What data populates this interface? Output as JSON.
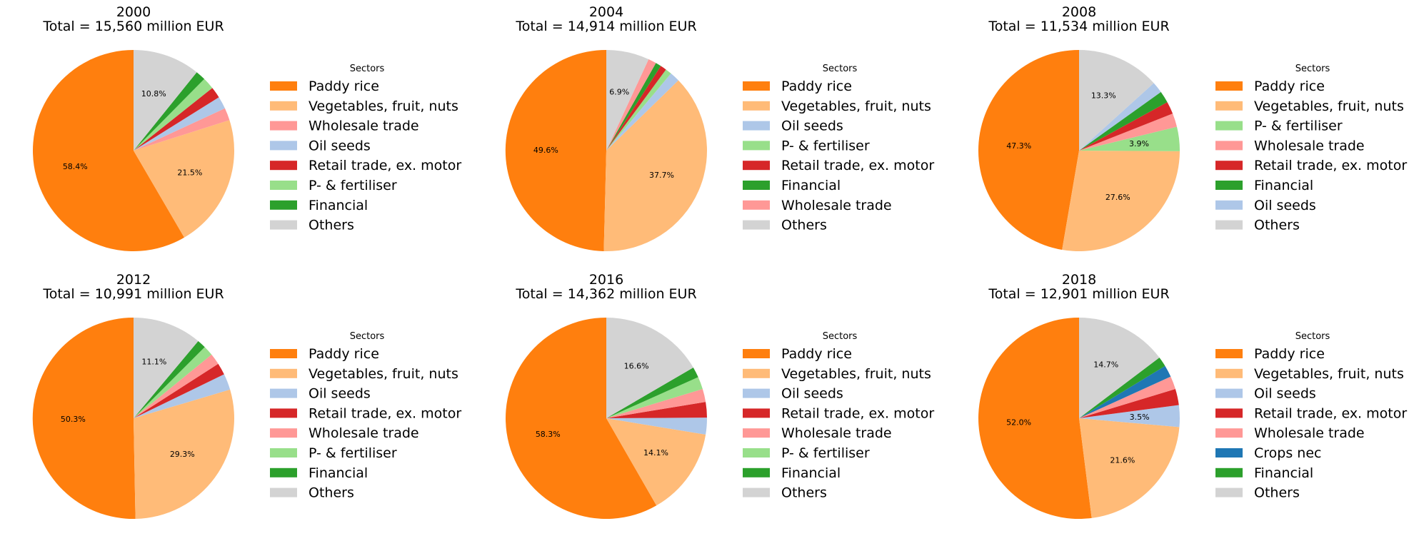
{
  "chart_data": [
    {
      "type": "pie",
      "title": "2000",
      "subtitle": "Total = 15,560 million EUR",
      "legend_title": "Sectors",
      "legend_placement": "right",
      "slices": [
        {
          "label": "Paddy rice",
          "value": 58.4,
          "color": "#ff7f0e",
          "pct_label": "58.4%"
        },
        {
          "label": "Vegetables, fruit, nuts",
          "value": 21.5,
          "color": "#ffbb78",
          "pct_label": "21.5%"
        },
        {
          "label": "Wholesale trade",
          "value": 2.0,
          "color": "#ff9896",
          "pct_label": ""
        },
        {
          "label": "Oil seeds",
          "value": 2.0,
          "color": "#aec7e8",
          "pct_label": ""
        },
        {
          "label": "Retail trade, ex. motor",
          "value": 1.8,
          "color": "#d62728",
          "pct_label": ""
        },
        {
          "label": "P- & fertiliser",
          "value": 1.9,
          "color": "#98df8a",
          "pct_label": ""
        },
        {
          "label": "Financial",
          "value": 1.6,
          "color": "#2ca02c",
          "pct_label": ""
        },
        {
          "label": "Others",
          "value": 10.8,
          "color": "#d3d3d3",
          "pct_label": "10.8%"
        }
      ]
    },
    {
      "type": "pie",
      "title": "2004",
      "subtitle": "Total = 14,914 million EUR",
      "legend_title": "Sectors",
      "legend_placement": "right",
      "slices": [
        {
          "label": "Paddy rice",
          "value": 49.6,
          "color": "#ff7f0e",
          "pct_label": "49.6%"
        },
        {
          "label": "Vegetables, fruit, nuts",
          "value": 37.7,
          "color": "#ffbb78",
          "pct_label": "37.7%"
        },
        {
          "label": "Oil seeds",
          "value": 1.6,
          "color": "#aec7e8",
          "pct_label": ""
        },
        {
          "label": "P- & fertiliser",
          "value": 1.0,
          "color": "#98df8a",
          "pct_label": ""
        },
        {
          "label": "Retail trade, ex. motor",
          "value": 1.0,
          "color": "#d62728",
          "pct_label": ""
        },
        {
          "label": "Financial",
          "value": 0.9,
          "color": "#2ca02c",
          "pct_label": ""
        },
        {
          "label": "Wholesale trade",
          "value": 1.3,
          "color": "#ff9896",
          "pct_label": ""
        },
        {
          "label": "Others",
          "value": 6.9,
          "color": "#d3d3d3",
          "pct_label": "6.9%"
        }
      ]
    },
    {
      "type": "pie",
      "title": "2008",
      "subtitle": "Total = 11,534 million EUR",
      "legend_title": "Sectors",
      "legend_placement": "right",
      "slices": [
        {
          "label": "Paddy rice",
          "value": 47.3,
          "color": "#ff7f0e",
          "pct_label": "47.3%"
        },
        {
          "label": "Vegetables, fruit, nuts",
          "value": 27.6,
          "color": "#ffbb78",
          "pct_label": "27.6%"
        },
        {
          "label": "P- & fertiliser",
          "value": 3.9,
          "color": "#98df8a",
          "pct_label": "3.9%"
        },
        {
          "label": "Wholesale trade",
          "value": 2.2,
          "color": "#ff9896",
          "pct_label": ""
        },
        {
          "label": "Retail trade, ex. motor",
          "value": 2.0,
          "color": "#d62728",
          "pct_label": ""
        },
        {
          "label": "Financial",
          "value": 1.9,
          "color": "#2ca02c",
          "pct_label": ""
        },
        {
          "label": "Oil seeds",
          "value": 1.8,
          "color": "#aec7e8",
          "pct_label": ""
        },
        {
          "label": "Others",
          "value": 13.3,
          "color": "#d3d3d3",
          "pct_label": "13.3%"
        }
      ]
    },
    {
      "type": "pie",
      "title": "2012",
      "subtitle": "Total = 10,991 million EUR",
      "legend_title": "Sectors",
      "legend_placement": "right",
      "slices": [
        {
          "label": "Paddy rice",
          "value": 50.3,
          "color": "#ff7f0e",
          "pct_label": "50.3%"
        },
        {
          "label": "Vegetables, fruit, nuts",
          "value": 29.3,
          "color": "#ffbb78",
          "pct_label": "29.3%"
        },
        {
          "label": "Oil seeds",
          "value": 2.6,
          "color": "#aec7e8",
          "pct_label": ""
        },
        {
          "label": "Retail trade, ex. motor",
          "value": 1.9,
          "color": "#d62728",
          "pct_label": ""
        },
        {
          "label": "Wholesale trade",
          "value": 1.8,
          "color": "#ff9896",
          "pct_label": ""
        },
        {
          "label": "P- & fertiliser",
          "value": 1.6,
          "color": "#98df8a",
          "pct_label": ""
        },
        {
          "label": "Financial",
          "value": 1.4,
          "color": "#2ca02c",
          "pct_label": ""
        },
        {
          "label": "Others",
          "value": 11.1,
          "color": "#d3d3d3",
          "pct_label": "11.1%"
        }
      ]
    },
    {
      "type": "pie",
      "title": "2016",
      "subtitle": "Total = 14,362 million EUR",
      "legend_title": "Sectors",
      "legend_placement": "right",
      "slices": [
        {
          "label": "Paddy rice",
          "value": 58.3,
          "color": "#ff7f0e",
          "pct_label": "58.3%"
        },
        {
          "label": "Vegetables, fruit, nuts",
          "value": 14.1,
          "color": "#ffbb78",
          "pct_label": "14.1%"
        },
        {
          "label": "Oil seeds",
          "value": 2.7,
          "color": "#aec7e8",
          "pct_label": ""
        },
        {
          "label": "Retail trade, ex. motor",
          "value": 2.5,
          "color": "#d62728",
          "pct_label": ""
        },
        {
          "label": "Wholesale trade",
          "value": 2.1,
          "color": "#ff9896",
          "pct_label": ""
        },
        {
          "label": "P- & fertiliser",
          "value": 2.0,
          "color": "#98df8a",
          "pct_label": ""
        },
        {
          "label": "Financial",
          "value": 1.7,
          "color": "#2ca02c",
          "pct_label": ""
        },
        {
          "label": "Others",
          "value": 16.6,
          "color": "#d3d3d3",
          "pct_label": "16.6%"
        }
      ]
    },
    {
      "type": "pie",
      "title": "2018",
      "subtitle": "Total = 12,901 million EUR",
      "legend_title": "Sectors",
      "legend_placement": "right",
      "slices": [
        {
          "label": "Paddy rice",
          "value": 52.0,
          "color": "#ff7f0e",
          "pct_label": "52.0%"
        },
        {
          "label": "Vegetables, fruit, nuts",
          "value": 21.6,
          "color": "#ffbb78",
          "pct_label": "21.6%"
        },
        {
          "label": "Oil seeds",
          "value": 3.5,
          "color": "#aec7e8",
          "pct_label": "3.5%"
        },
        {
          "label": "Retail trade, ex. motor",
          "value": 2.6,
          "color": "#d62728",
          "pct_label": ""
        },
        {
          "label": "Wholesale trade",
          "value": 2.1,
          "color": "#ff9896",
          "pct_label": ""
        },
        {
          "label": "Crops nec",
          "value": 1.9,
          "color": "#1f77b4",
          "pct_label": ""
        },
        {
          "label": "Financial",
          "value": 1.6,
          "color": "#2ca02c",
          "pct_label": ""
        },
        {
          "label": "Others",
          "value": 14.7,
          "color": "#d3d3d3",
          "pct_label": "14.7%"
        }
      ]
    }
  ]
}
